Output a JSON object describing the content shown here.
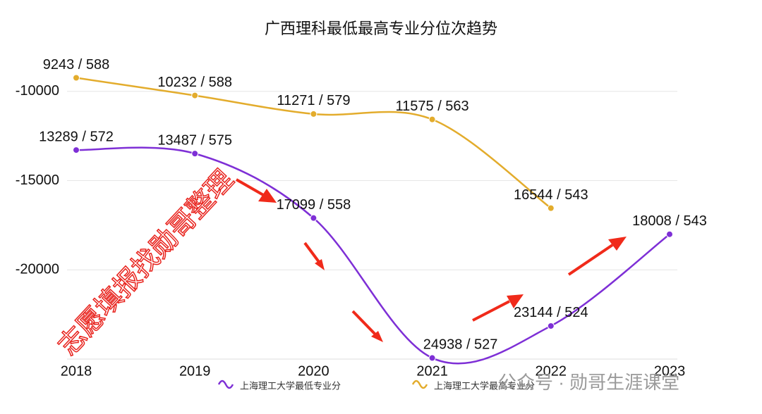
{
  "chart_data": {
    "type": "line",
    "title": "广西理科最低最高专业分位次趋势",
    "categories": [
      "2018",
      "2019",
      "2020",
      "2021",
      "2022",
      "2023"
    ],
    "series": [
      {
        "name": "上海理工大学最低专业分",
        "color": "#7e2fd6",
        "values": [
          -13289,
          -13487,
          -17099,
          -24938,
          -23144,
          -18008
        ],
        "value_labels": [
          "13289 / 572",
          "13487 / 575",
          "17099 / 558",
          "24938 / 527",
          "23144 / 524",
          "18008 / 543"
        ]
      },
      {
        "name": "上海理工大学最高专业分",
        "color": "#e3ac2c",
        "values": [
          -9243,
          -10232,
          -11271,
          -11575,
          -16544,
          null
        ],
        "value_labels": [
          "9243 / 588",
          "10232 / 588",
          "11271 / 579",
          "11575 / 563",
          "16544 / 543",
          null
        ]
      }
    ],
    "ylim": [
      -25000,
      -8000
    ],
    "yticks": [
      -10000,
      -15000,
      -20000
    ],
    "grid": true,
    "legend": "bottom"
  },
  "watermark": "志愿填报找勋哥整理",
  "footer": "公众号 · 勋哥生涯课堂"
}
